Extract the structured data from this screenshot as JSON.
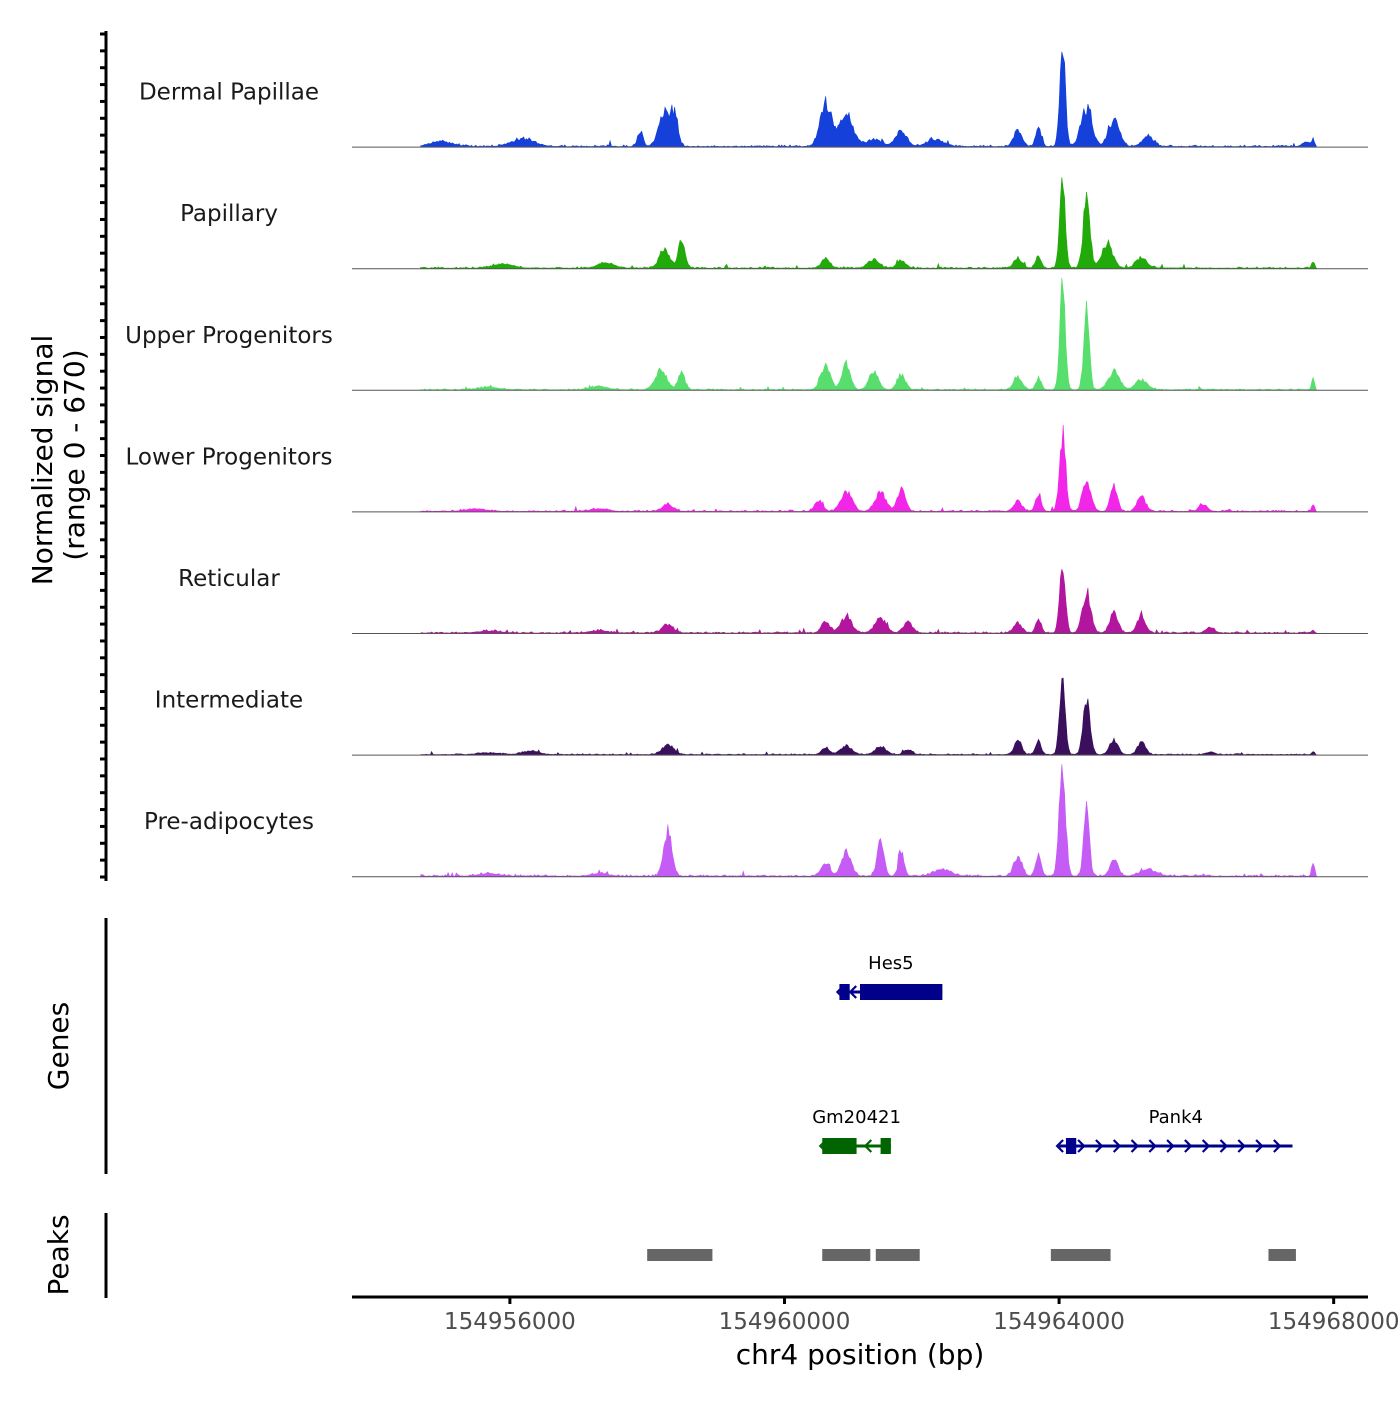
{
  "chart_data": {
    "type": "area",
    "title": "",
    "ylabel_line1": "Normalized signal",
    "ylabel_line2": "(range 0 - 670)",
    "xlabel": "chr4 position (bp)",
    "genes_label": "Genes",
    "peaks_label": "Peaks",
    "xlim": [
      154953700,
      154968500
    ],
    "xticks": [
      154956000,
      154960000,
      154964000,
      154968000
    ],
    "xtick_labels": [
      "154956000",
      "154960000",
      "154964000",
      "154968000"
    ],
    "signal_range": [
      0,
      670
    ],
    "tracks": [
      {
        "name": "Dermal Papillae",
        "color": "#1540d9",
        "peaks": [
          [
            154956200,
            45,
            160
          ],
          [
            154955000,
            30,
            160
          ],
          [
            154957900,
            90,
            40
          ],
          [
            154958250,
            200,
            80
          ],
          [
            154958400,
            180,
            50
          ],
          [
            154960600,
            260,
            80
          ],
          [
            154960900,
            190,
            100
          ],
          [
            154961300,
            40,
            120
          ],
          [
            154961700,
            90,
            80
          ],
          [
            154962200,
            40,
            120
          ],
          [
            154963400,
            90,
            60
          ],
          [
            154963700,
            120,
            40
          ],
          [
            154964050,
            580,
            40
          ],
          [
            154964400,
            220,
            80
          ],
          [
            154964800,
            150,
            80
          ],
          [
            154965300,
            60,
            80
          ],
          [
            154967600,
            25,
            60
          ],
          [
            154967700,
            40,
            20
          ]
        ],
        "bg": 10
      },
      {
        "name": "Papillary",
        "color": "#22a90a",
        "peaks": [
          [
            154955900,
            25,
            150
          ],
          [
            154957400,
            30,
            120
          ],
          [
            154958250,
            120,
            70
          ],
          [
            154958500,
            170,
            50
          ],
          [
            154960600,
            60,
            60
          ],
          [
            154961300,
            50,
            80
          ],
          [
            154961700,
            50,
            60
          ],
          [
            154963400,
            60,
            60
          ],
          [
            154963700,
            70,
            40
          ],
          [
            154964050,
            520,
            40
          ],
          [
            154964400,
            400,
            50
          ],
          [
            154964700,
            150,
            80
          ],
          [
            154965200,
            60,
            80
          ],
          [
            154967700,
            40,
            20
          ]
        ],
        "bg": 8
      },
      {
        "name": "Upper Progenitors",
        "color": "#58de6c",
        "peaks": [
          [
            154955700,
            15,
            150
          ],
          [
            154957300,
            20,
            120
          ],
          [
            154958200,
            120,
            80
          ],
          [
            154958500,
            100,
            50
          ],
          [
            154960600,
            140,
            70
          ],
          [
            154960900,
            160,
            60
          ],
          [
            154961300,
            100,
            70
          ],
          [
            154961700,
            90,
            60
          ],
          [
            154963400,
            80,
            60
          ],
          [
            154963700,
            70,
            40
          ],
          [
            154964050,
            640,
            40
          ],
          [
            154964400,
            460,
            40
          ],
          [
            154964800,
            110,
            80
          ],
          [
            154965200,
            60,
            80
          ],
          [
            154967700,
            70,
            20
          ]
        ],
        "bg": 6
      },
      {
        "name": "Lower Progenitors",
        "color": "#f226e8",
        "peaks": [
          [
            154955500,
            15,
            150
          ],
          [
            154957300,
            15,
            120
          ],
          [
            154958300,
            40,
            80
          ],
          [
            154960500,
            60,
            60
          ],
          [
            154960900,
            120,
            80
          ],
          [
            154961400,
            110,
            80
          ],
          [
            154961700,
            130,
            60
          ],
          [
            154963400,
            60,
            60
          ],
          [
            154963700,
            110,
            40
          ],
          [
            154964050,
            450,
            45
          ],
          [
            154964400,
            180,
            60
          ],
          [
            154964800,
            150,
            50
          ],
          [
            154965200,
            90,
            60
          ],
          [
            154966100,
            40,
            60
          ],
          [
            154967700,
            40,
            20
          ]
        ],
        "bg": 8
      },
      {
        "name": "Reticular",
        "color": "#b3169e",
        "peaks": [
          [
            154955700,
            12,
            150
          ],
          [
            154957300,
            15,
            120
          ],
          [
            154958300,
            50,
            80
          ],
          [
            154960600,
            70,
            60
          ],
          [
            154960900,
            100,
            80
          ],
          [
            154961400,
            90,
            80
          ],
          [
            154961800,
            70,
            60
          ],
          [
            154963400,
            60,
            60
          ],
          [
            154963700,
            80,
            40
          ],
          [
            154964050,
            440,
            40
          ],
          [
            154964400,
            240,
            60
          ],
          [
            154964800,
            120,
            60
          ],
          [
            154965200,
            100,
            60
          ],
          [
            154966200,
            30,
            60
          ],
          [
            154967700,
            15,
            20
          ]
        ],
        "bg": 8
      },
      {
        "name": "Intermediate",
        "color": "#3a0f5c",
        "peaks": [
          [
            154955700,
            10,
            150
          ],
          [
            154956300,
            20,
            120
          ],
          [
            154958300,
            60,
            80
          ],
          [
            154960600,
            40,
            60
          ],
          [
            154960900,
            50,
            80
          ],
          [
            154961400,
            45,
            80
          ],
          [
            154961800,
            30,
            60
          ],
          [
            154963400,
            90,
            50
          ],
          [
            154963700,
            80,
            40
          ],
          [
            154964050,
            470,
            40
          ],
          [
            154964400,
            310,
            50
          ],
          [
            154964800,
            90,
            60
          ],
          [
            154965200,
            70,
            60
          ],
          [
            154966200,
            15,
            60
          ],
          [
            154967700,
            15,
            20
          ]
        ],
        "bg": 6
      },
      {
        "name": "Pre-adipocytes",
        "color": "#c55cf5",
        "peaks": [
          [
            154954300,
            15,
            60
          ],
          [
            154955700,
            15,
            150
          ],
          [
            154957300,
            15,
            120
          ],
          [
            154958300,
            260,
            60
          ],
          [
            154960600,
            80,
            60
          ],
          [
            154960900,
            150,
            70
          ],
          [
            154961400,
            200,
            50
          ],
          [
            154961700,
            150,
            40
          ],
          [
            154962300,
            40,
            120
          ],
          [
            154963400,
            120,
            60
          ],
          [
            154963700,
            130,
            40
          ],
          [
            154964050,
            670,
            45
          ],
          [
            154964400,
            430,
            40
          ],
          [
            154964800,
            90,
            60
          ],
          [
            154965300,
            40,
            120
          ],
          [
            154967700,
            80,
            20
          ]
        ],
        "bg": 10
      }
    ],
    "genes": [
      {
        "name": "Hes5",
        "strand": "-",
        "start": 154960800,
        "end": 154962300,
        "row": 1,
        "color": "#00008b",
        "exons": [
          [
            154960800,
            154960950
          ],
          [
            154961100,
            154962300
          ]
        ]
      },
      {
        "name": "Gm20421",
        "strand": "-",
        "start": 154960550,
        "end": 154961550,
        "row": 2,
        "color": "#006400",
        "exons": [
          [
            154960550,
            154961050
          ],
          [
            154961400,
            154961550
          ]
        ]
      },
      {
        "name": "Pank4",
        "strand": "+",
        "start": 154964000,
        "end": 154967400,
        "row": 2,
        "color": "#00008b",
        "exons": [
          [
            154964100,
            154964250
          ]
        ]
      }
    ],
    "peak_regions": [
      [
        154958000,
        154958950
      ],
      [
        154960550,
        154961250
      ],
      [
        154961330,
        154961970
      ],
      [
        154963880,
        154964750
      ],
      [
        154967050,
        154967450
      ]
    ]
  }
}
